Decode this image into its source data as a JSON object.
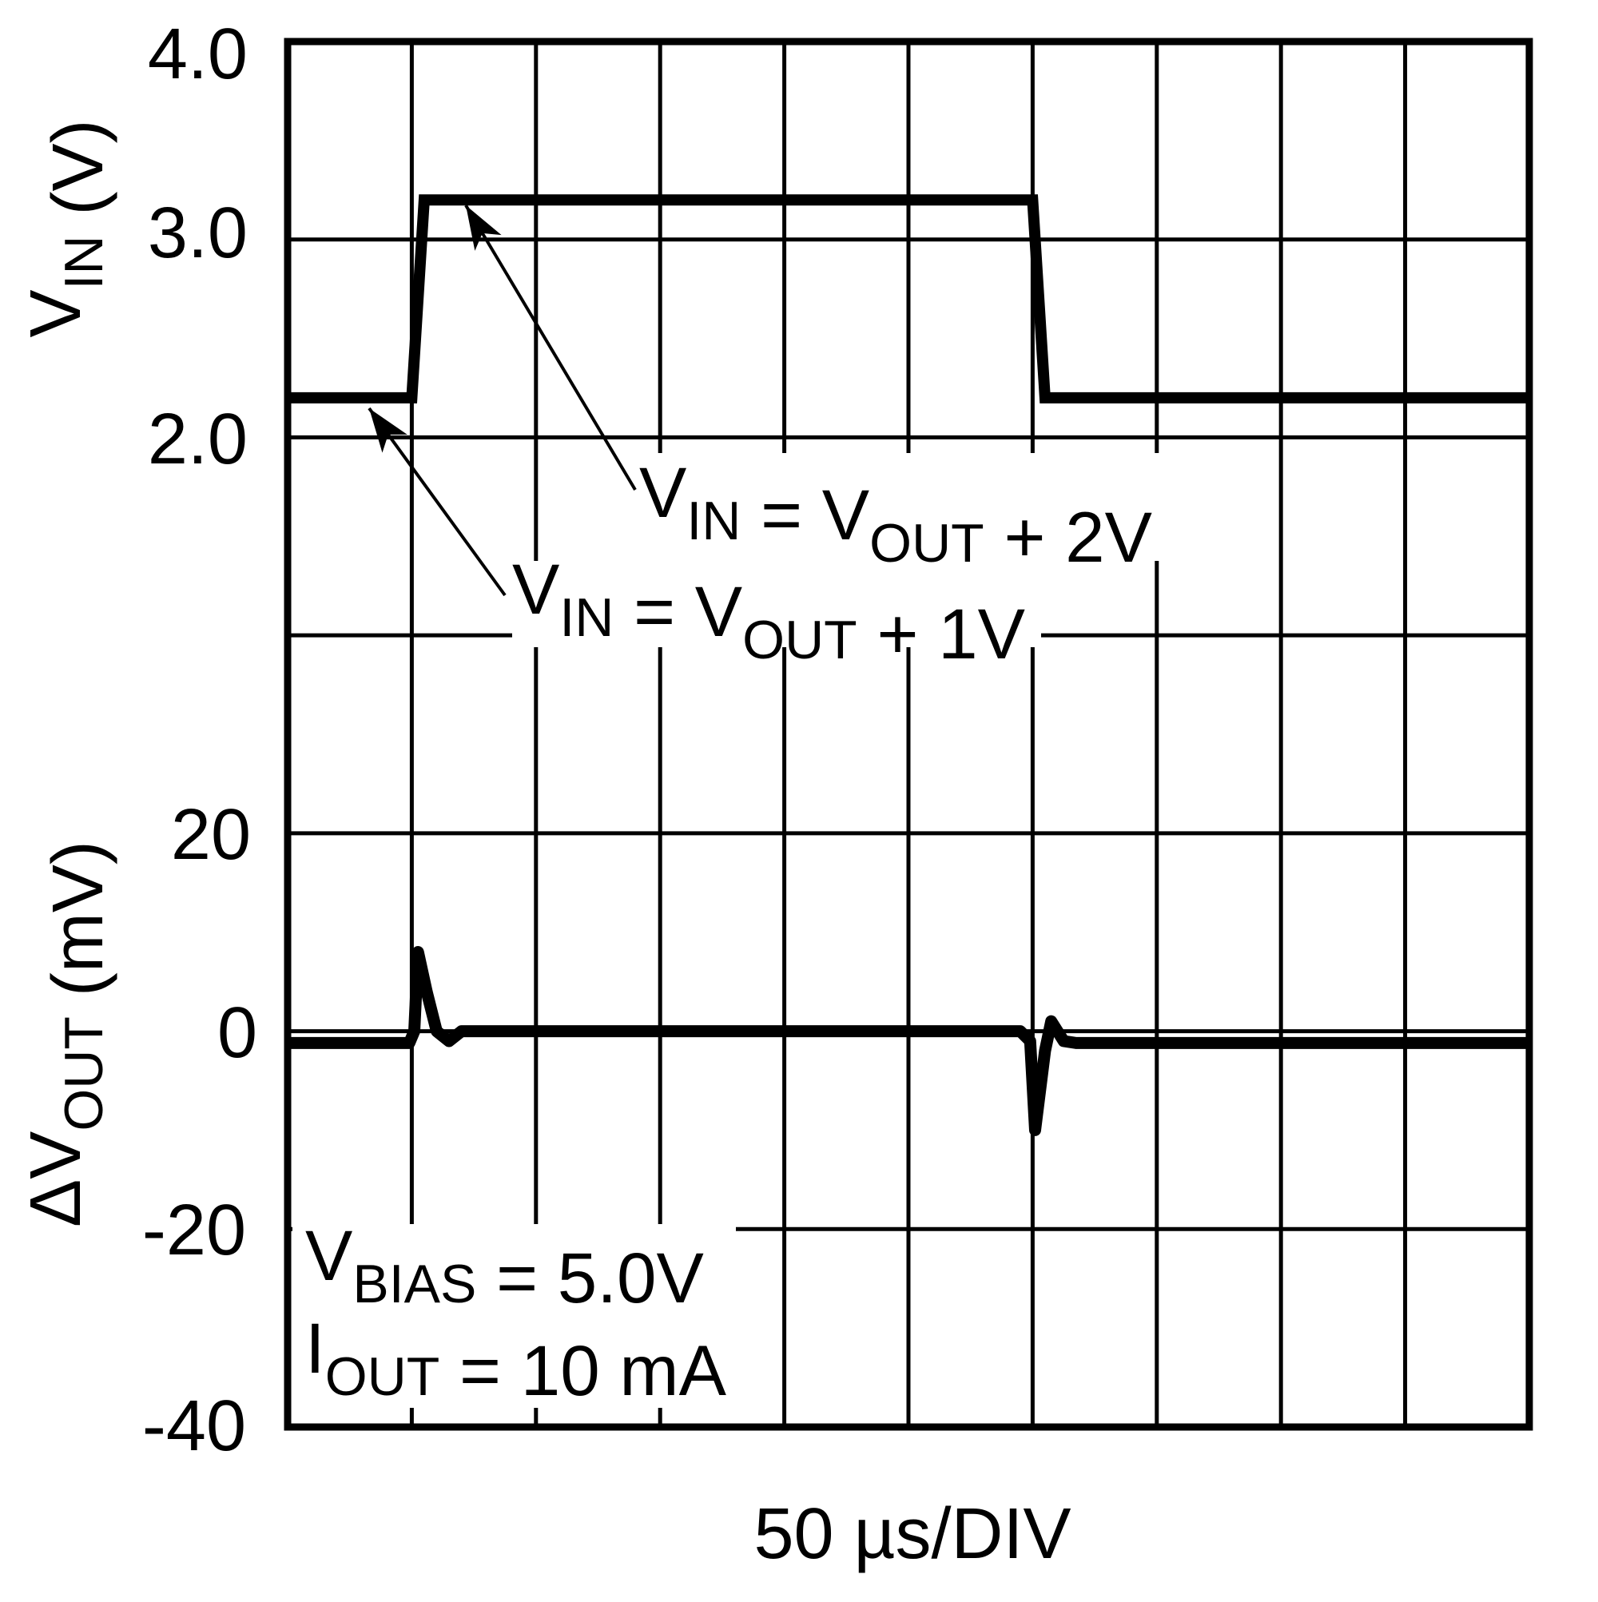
{
  "chart_data": {
    "type": "line",
    "title": "",
    "xlabel": "50 µs/DIV",
    "x_divisions": 10,
    "colors": {
      "trace": "#000000",
      "grid": "#000000",
      "background": "#ffffff"
    },
    "panels": [
      {
        "name": "vin",
        "ylabel": {
          "main": "V",
          "sub": "IN",
          "tail": " (V)"
        },
        "y_ticks": [
          "4.0",
          "3.0",
          "2.0"
        ],
        "ylim": [
          2.0,
          4.0
        ],
        "x_div": [
          0,
          0.9,
          1.0,
          1.1,
          5.95,
          6.0,
          6.1,
          10
        ],
        "values": [
          2.2,
          2.2,
          2.2,
          3.2,
          3.2,
          3.2,
          2.2,
          2.2
        ],
        "unit": "V"
      },
      {
        "name": "delta_vout",
        "ylabel": {
          "prefix": "Δ",
          "main": "V",
          "sub": "OUT",
          "tail": " (mV)"
        },
        "y_ticks": [
          "20",
          "0",
          "-20",
          "-40"
        ],
        "ylim": [
          -40,
          20
        ],
        "x_div": [
          0,
          0.98,
          1.02,
          1.05,
          1.12,
          1.2,
          1.3,
          1.4,
          5.9,
          5.98,
          6.02,
          6.1,
          6.15,
          6.25,
          6.35,
          6.5,
          10
        ],
        "values": [
          -1.2,
          -1.2,
          0,
          8,
          4,
          0,
          -1,
          0,
          0,
          -1,
          -10,
          -2,
          1,
          -1,
          -1.2,
          -1.2,
          -1.2
        ],
        "unit": "mV"
      }
    ],
    "annotations": [
      {
        "id": "vin_2v",
        "parts": [
          {
            "t": "V",
            "sub": false
          },
          {
            "t": "IN",
            "sub": true
          },
          {
            "t": " = V",
            "sub": false
          },
          {
            "t": "OUT",
            "sub": true
          },
          {
            "t": " + 2V",
            "sub": false
          }
        ]
      },
      {
        "id": "vin_1v",
        "parts": [
          {
            "t": "V",
            "sub": false
          },
          {
            "t": "IN",
            "sub": true
          },
          {
            "t": " = V",
            "sub": false
          },
          {
            "t": "OUT",
            "sub": true
          },
          {
            "t": " + 1V",
            "sub": false
          }
        ]
      },
      {
        "id": "vbias",
        "parts": [
          {
            "t": "V",
            "sub": false
          },
          {
            "t": "BIAS",
            "sub": true
          },
          {
            "t": " = 5.0V",
            "sub": false
          }
        ]
      },
      {
        "id": "iout",
        "parts": [
          {
            "t": "I",
            "sub": false
          },
          {
            "t": "OUT",
            "sub": true
          },
          {
            "t": " = 10 mA",
            "sub": false
          }
        ]
      }
    ]
  },
  "labels": {
    "x_axis_title": "50 µs/DIV",
    "vin_ticks": [
      "4.0",
      "3.0",
      "2.0"
    ],
    "dvout_ticks": [
      "20",
      "0",
      "-20",
      "-40"
    ]
  }
}
